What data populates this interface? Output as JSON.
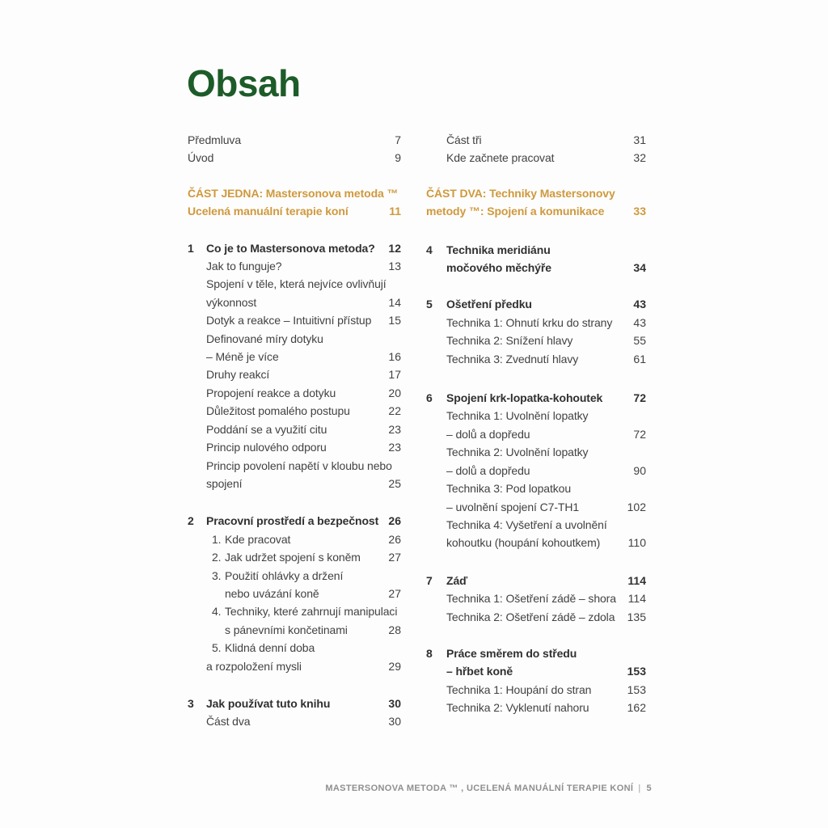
{
  "page": {
    "title": "Obsah",
    "footer": {
      "text": "MASTERSONOVA METODA ™ , UCELENÁ MANUÁLNÍ TERAPIE KONÍ",
      "separator": "|",
      "page_number": "5"
    },
    "colors": {
      "title_green": "#1d5c29",
      "accent_orange": "#cf993d",
      "body_text": "#424242",
      "footer_gray": "#8f8f8f",
      "background": "#fdfdfd"
    }
  },
  "toc": {
    "columns": [
      {
        "side": "left",
        "blocks": [
          {
            "gap": 0,
            "lines": [
              {
                "ind": 0,
                "text": "Předmluva",
                "num": "7"
              },
              {
                "ind": 0,
                "text": "Úvod",
                "num": "9"
              }
            ]
          },
          {
            "gap": 21,
            "lines": [
              {
                "ind": 0,
                "text": "ČÁST JEDNA: Mastersonova metoda ™",
                "part": true
              },
              {
                "ind": 0,
                "text": "Ucelená manuální terapie koní",
                "num": "11",
                "part": true
              }
            ]
          },
          {
            "gap": 23,
            "lines": [
              {
                "marker": "1",
                "mx": 0,
                "ind": 23,
                "text": "Co je to Mastersonova metoda?",
                "num": "12",
                "bold": true
              },
              {
                "ind": 23,
                "text": "Jak to funguje?",
                "num": "13"
              },
              {
                "ind": 23,
                "text": "Spojení v těle, která nejvíce ovlivňují"
              },
              {
                "ind": 23,
                "text": "výkonnost",
                "num": "14"
              },
              {
                "ind": 23,
                "text": "Dotyk a reakce – Intuitivní přístup",
                "num": "15"
              },
              {
                "ind": 23,
                "text": "Definované míry dotyku"
              },
              {
                "ind": 23,
                "text": "– Méně je více",
                "num": "16"
              },
              {
                "ind": 23,
                "text": "Druhy reakcí",
                "num": "17"
              },
              {
                "ind": 23,
                "text": "Propojení reakce a dotyku",
                "num": "20"
              },
              {
                "ind": 23,
                "text": "Důležitost pomalého postupu",
                "num": "22"
              },
              {
                "ind": 23,
                "text": "Poddání se a využití citu",
                "num": "23"
              },
              {
                "ind": 23,
                "text": "Princip nulového odporu",
                "num": "23"
              },
              {
                "ind": 23,
                "text": "Princip povolení napětí v kloubu nebo"
              },
              {
                "ind": 23,
                "text": "spojení",
                "num": "25"
              }
            ]
          },
          {
            "gap": 24,
            "lines": [
              {
                "marker": "2",
                "mx": 0,
                "ind": 23,
                "text": "Pracovní prostředí a bezpečnost",
                "num": "26",
                "bold": true
              },
              {
                "marker": "1.",
                "mx": 30,
                "ind": 46,
                "text": "Kde pracovat",
                "num": "26"
              },
              {
                "marker": "2.",
                "mx": 30,
                "ind": 46,
                "text": "Jak udržet spojení s koněm",
                "num": "27"
              },
              {
                "marker": "3.",
                "mx": 30,
                "ind": 46,
                "text": "Použití ohlávky a držení"
              },
              {
                "ind": 46,
                "text": "nebo uvázání koně",
                "num": "27"
              },
              {
                "marker": "4.",
                "mx": 30,
                "ind": 46,
                "text": "Techniky, které zahrnují manipulaci"
              },
              {
                "ind": 46,
                "text": "s pánevními končetinami",
                "num": "28"
              },
              {
                "marker": "5.",
                "mx": 30,
                "ind": 46,
                "text": "Klidná denní doba"
              },
              {
                "ind": 23,
                "text": "a rozpoložení mysli",
                "num": "29"
              }
            ]
          },
          {
            "gap": 24,
            "lines": [
              {
                "marker": "3",
                "mx": 0,
                "ind": 23,
                "text": "Jak používat tuto knihu",
                "num": "30",
                "bold": true
              },
              {
                "ind": 23,
                "text": "Část dva",
                "num": "30"
              }
            ]
          }
        ]
      },
      {
        "side": "right",
        "blocks": [
          {
            "gap": 0,
            "lines": [
              {
                "ind": 25,
                "text": "Část tři",
                "num": "31"
              },
              {
                "ind": 25,
                "text": "Kde začnete pracovat",
                "num": "32"
              }
            ]
          },
          {
            "gap": 21,
            "lines": [
              {
                "ind": 0,
                "text": "ČÁST DVA: Techniky Mastersonovy",
                "part": true
              },
              {
                "ind": 0,
                "text": "metody ™: Spojení a komunikace",
                "num": "33",
                "part": true
              }
            ]
          },
          {
            "gap": 25,
            "lines": [
              {
                "marker": "4",
                "mx": 0,
                "ind": 25,
                "text": "Technika meridiánu",
                "bold": true
              },
              {
                "ind": 25,
                "text": "močového měchýře",
                "num": "34",
                "bold": true
              }
            ]
          },
          {
            "gap": 23,
            "lines": [
              {
                "marker": "5",
                "mx": 0,
                "ind": 25,
                "text": "Ošetření předku",
                "num": "43",
                "bold": true
              },
              {
                "ind": 25,
                "text": "Technika 1: Ohnutí krku do strany",
                "num": "43"
              },
              {
                "ind": 25,
                "text": "Technika 2: Snížení hlavy",
                "num": "55"
              },
              {
                "ind": 25,
                "text": "Technika 3: Zvednutí hlavy",
                "num": "61"
              }
            ]
          },
          {
            "gap": 26,
            "lines": [
              {
                "marker": "6",
                "mx": 0,
                "ind": 25,
                "text": "Spojení krk-lopatka-kohoutek",
                "num": "72",
                "bold": true
              },
              {
                "ind": 25,
                "text": "Technika 1: Uvolnění lopatky"
              },
              {
                "ind": 25,
                "text": "– dolů a dopředu",
                "num": "72"
              },
              {
                "ind": 25,
                "text": "Technika 2: Uvolnění lopatky"
              },
              {
                "ind": 25,
                "text": "– dolů a dopředu",
                "num": "90"
              },
              {
                "ind": 25,
                "text": "Technika 3: Pod lopatkou"
              },
              {
                "ind": 25,
                "text": "– uvolnění spojení C7-TH1",
                "num": "102"
              },
              {
                "ind": 25,
                "text": "Technika 4: Vyšetření a uvolnění"
              },
              {
                "ind": 25,
                "text": "kohoutku (houpání kohoutkem)",
                "num": "110"
              }
            ]
          },
          {
            "gap": 24,
            "lines": [
              {
                "marker": "7",
                "mx": 0,
                "ind": 25,
                "text": "Záď",
                "num": "114",
                "bold": true
              },
              {
                "ind": 25,
                "text": "Technika 1: Ošetření zádě – shora",
                "num": "114"
              },
              {
                "ind": 25,
                "text": "Technika 2: Ošetření zádě – zdola",
                "num": "135"
              }
            ]
          },
          {
            "gap": 23,
            "lines": [
              {
                "marker": "8",
                "mx": 0,
                "ind": 25,
                "text": "Práce směrem do středu",
                "bold": true
              },
              {
                "ind": 25,
                "text": "– hřbet koně",
                "num": "153",
                "bold": true
              },
              {
                "ind": 25,
                "text": "Technika 1: Houpání do stran",
                "num": "153"
              },
              {
                "ind": 25,
                "text": "Technika 2: Vyklenutí nahoru",
                "num": "162"
              }
            ]
          }
        ]
      }
    ]
  }
}
